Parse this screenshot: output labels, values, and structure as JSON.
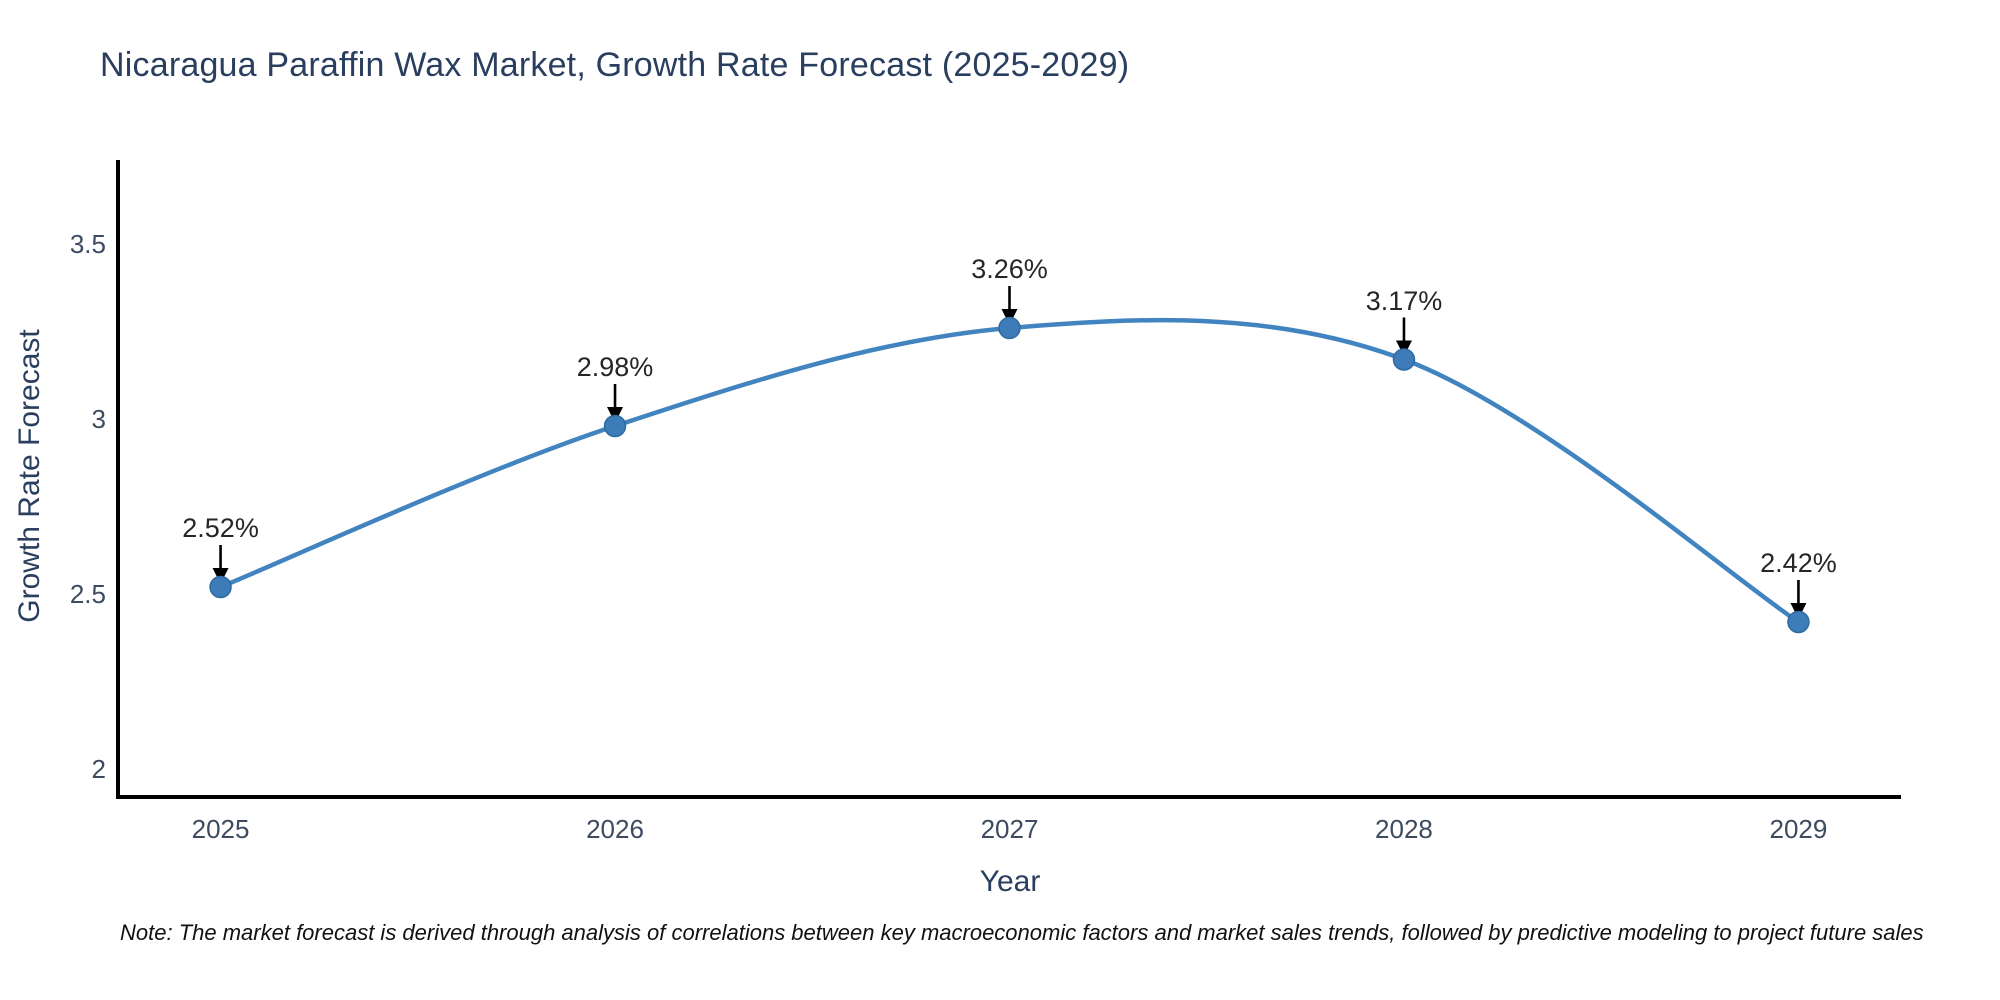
{
  "page": {
    "background": "#ffffff"
  },
  "chart_data": {
    "type": "line",
    "title": "Nicaragua Paraffin Wax Market, Growth Rate Forecast (2025-2029)",
    "xlabel": "Year",
    "ylabel": "Growth Rate Forecast",
    "x": [
      2025,
      2026,
      2027,
      2028,
      2029
    ],
    "series": [
      {
        "name": "Growth Rate Forecast",
        "values": [
          2.52,
          2.98,
          3.26,
          3.17,
          2.42
        ]
      }
    ],
    "point_labels": [
      "2.52%",
      "2.98%",
      "3.26%",
      "3.17%",
      "2.42%"
    ],
    "x_tick_labels": [
      "2025",
      "2026",
      "2027",
      "2028",
      "2029"
    ],
    "y_tick_values": [
      2,
      2.5,
      3,
      3.5
    ],
    "y_tick_labels": [
      "2",
      "2.5",
      "3",
      "3.5"
    ],
    "xlim": [
      2024.74,
      2029.26
    ],
    "ylim": [
      1.92,
      3.74
    ],
    "grid": false,
    "legend": false,
    "line_shape": "spline",
    "marker": "circle",
    "annotation_arrows": true
  },
  "footnote": "Note: The market forecast is derived through analysis of correlations between key macroeconomic factors and market sales trends, followed by predictive modeling to project future sales",
  "colors": {
    "line": "#4184c0",
    "marker_fill": "#3d7cb8",
    "marker_edge": "#2f6ba3",
    "axis_line": "#000000",
    "arrow": "#000000",
    "title_text": "#2a3f5f",
    "axis_title_text": "#2a3f5f",
    "tick_text": "#3d4a5f",
    "annotation_text": "#262626",
    "footnote_text": "#111111"
  }
}
